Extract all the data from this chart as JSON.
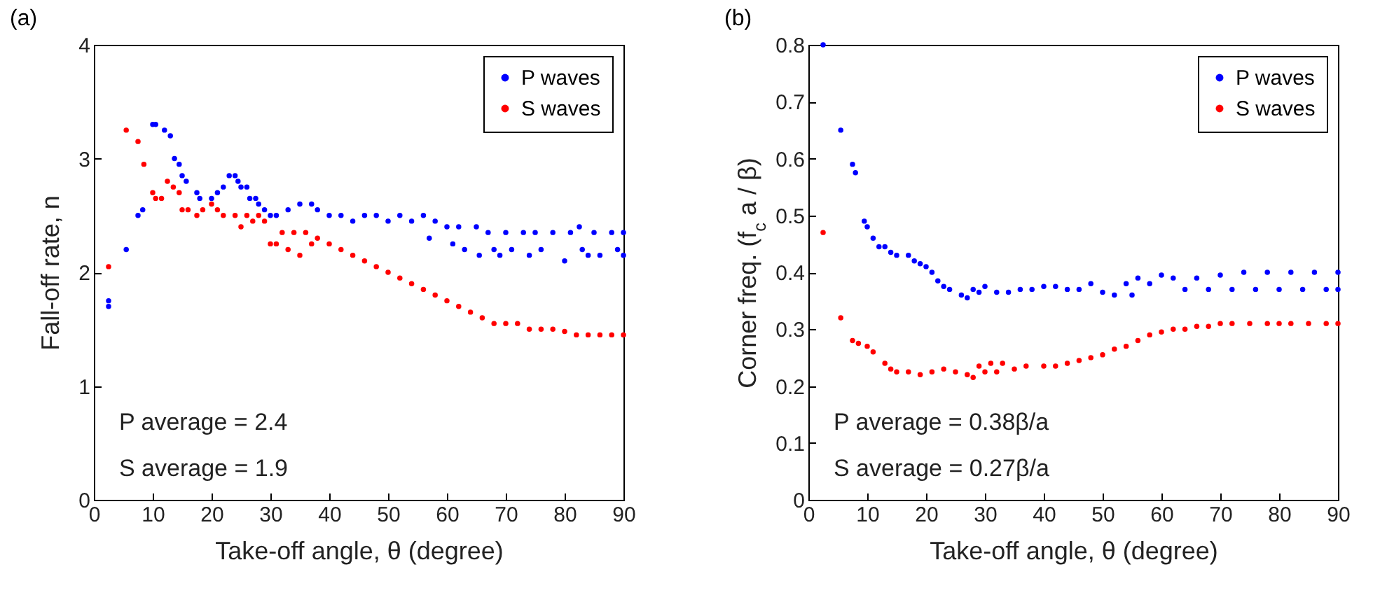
{
  "chart_data": [
    {
      "type": "scatter",
      "title": "(a)",
      "xlabel": "Take-off angle, θ (degree)",
      "ylabel": "Fall-off rate, n",
      "xlim": [
        0,
        90
      ],
      "xticks": [
        0,
        10,
        20,
        30,
        40,
        50,
        60,
        70,
        80,
        90
      ],
      "ylim": [
        0,
        4
      ],
      "yticks": [
        0,
        1,
        2,
        3,
        4
      ],
      "legend": "top right",
      "marker": "circle",
      "annotations": [
        "P average = 2.4",
        "S average = 1.9"
      ],
      "series": [
        {
          "name": "P waves",
          "color": "#0000ff",
          "x": [
            2.5,
            2.5,
            5.5,
            7.5,
            8.3,
            10,
            10.5,
            12,
            13,
            13.7,
            14.5,
            15,
            15.7,
            17.5,
            18,
            20,
            21,
            22,
            23,
            24,
            24.5,
            25,
            26,
            26.5,
            27.5,
            28,
            29,
            30,
            31,
            33,
            35,
            37,
            38,
            40,
            42,
            44,
            46,
            48,
            50,
            52,
            54,
            56,
            57,
            58,
            60,
            61,
            62,
            63,
            65,
            65.5,
            67,
            68,
            69,
            70,
            71,
            73,
            74,
            75,
            76,
            78,
            80,
            81,
            82.5,
            83,
            84,
            85,
            86,
            88,
            89,
            90,
            90
          ],
          "values": [
            1.7,
            1.75,
            2.2,
            2.5,
            2.55,
            3.3,
            3.3,
            3.25,
            3.2,
            3.0,
            2.95,
            2.85,
            2.8,
            2.7,
            2.65,
            2.65,
            2.7,
            2.75,
            2.85,
            2.85,
            2.8,
            2.75,
            2.75,
            2.65,
            2.65,
            2.6,
            2.55,
            2.5,
            2.5,
            2.55,
            2.6,
            2.6,
            2.55,
            2.5,
            2.5,
            2.45,
            2.5,
            2.5,
            2.45,
            2.5,
            2.45,
            2.5,
            2.3,
            2.45,
            2.4,
            2.25,
            2.4,
            2.2,
            2.4,
            2.15,
            2.35,
            2.2,
            2.15,
            2.35,
            2.2,
            2.35,
            2.15,
            2.35,
            2.2,
            2.35,
            2.1,
            2.35,
            2.4,
            2.2,
            2.15,
            2.35,
            2.15,
            2.35,
            2.2,
            2.15,
            2.35
          ]
        },
        {
          "name": "S waves",
          "color": "#ff0000",
          "x": [
            2.5,
            5.5,
            7.5,
            8.5,
            10,
            10.5,
            11.5,
            12.5,
            13.5,
            14.5,
            15,
            16,
            17.5,
            18.5,
            20,
            21,
            22,
            24,
            25,
            26,
            27,
            28,
            29,
            30,
            31,
            32,
            33,
            34,
            35,
            36,
            37,
            38,
            40,
            42,
            44,
            46,
            48,
            50,
            52,
            54,
            56,
            58,
            60,
            62,
            64,
            66,
            68,
            70,
            72,
            74,
            76,
            78,
            80,
            82,
            84,
            86,
            88,
            90
          ],
          "values": [
            2.05,
            3.25,
            3.15,
            2.95,
            2.7,
            2.65,
            2.65,
            2.8,
            2.75,
            2.7,
            2.55,
            2.55,
            2.5,
            2.55,
            2.6,
            2.55,
            2.5,
            2.5,
            2.4,
            2.5,
            2.45,
            2.5,
            2.45,
            2.25,
            2.25,
            2.35,
            2.2,
            2.35,
            2.15,
            2.35,
            2.25,
            2.3,
            2.25,
            2.2,
            2.15,
            2.1,
            2.05,
            2.0,
            1.95,
            1.9,
            1.85,
            1.8,
            1.75,
            1.7,
            1.65,
            1.6,
            1.55,
            1.55,
            1.55,
            1.5,
            1.5,
            1.5,
            1.48,
            1.45,
            1.45,
            1.45,
            1.45,
            1.45
          ]
        }
      ]
    },
    {
      "type": "scatter",
      "title": "(b)",
      "xlabel": "Take-off angle, θ (degree)",
      "ylabel": "Corner freq. (f$_{c}$ a / β)",
      "xlim": [
        0,
        90
      ],
      "xticks": [
        0,
        10,
        20,
        30,
        40,
        50,
        60,
        70,
        80,
        90
      ],
      "ylim": [
        0,
        0.8
      ],
      "yticks": [
        0,
        0.1,
        0.2,
        0.3,
        0.4,
        0.5,
        0.6,
        0.7,
        0.8
      ],
      "legend": "top right",
      "marker": "circle",
      "annotations": [
        "P average = 0.38β/a",
        "S average = 0.27β/a"
      ],
      "series": [
        {
          "name": "P waves",
          "color": "#0000ff",
          "x": [
            2.5,
            5.5,
            7.5,
            8,
            9.5,
            10,
            11,
            12,
            13,
            14,
            15,
            17,
            18,
            19,
            20,
            21,
            22,
            23,
            24,
            26,
            27,
            28,
            29,
            30,
            32,
            34,
            36,
            38,
            40,
            42,
            44,
            46,
            48,
            50,
            52,
            54,
            55,
            56,
            58,
            60,
            62,
            64,
            66,
            68,
            70,
            72,
            74,
            76,
            78,
            80,
            82,
            84,
            86,
            88,
            90,
            90
          ],
          "values": [
            0.8,
            0.65,
            0.59,
            0.575,
            0.49,
            0.48,
            0.46,
            0.445,
            0.445,
            0.435,
            0.43,
            0.43,
            0.42,
            0.415,
            0.41,
            0.4,
            0.385,
            0.375,
            0.37,
            0.36,
            0.355,
            0.37,
            0.365,
            0.375,
            0.365,
            0.365,
            0.37,
            0.37,
            0.375,
            0.375,
            0.37,
            0.37,
            0.38,
            0.365,
            0.36,
            0.38,
            0.36,
            0.39,
            0.38,
            0.395,
            0.39,
            0.37,
            0.39,
            0.37,
            0.395,
            0.37,
            0.4,
            0.37,
            0.4,
            0.37,
            0.4,
            0.37,
            0.4,
            0.37,
            0.4,
            0.37
          ]
        },
        {
          "name": "S waves",
          "color": "#ff0000",
          "x": [
            2.5,
            5.5,
            7.5,
            8.5,
            10,
            11,
            13,
            14,
            15,
            17,
            19,
            21,
            23,
            25,
            27,
            28,
            29,
            30,
            31,
            32,
            33,
            35,
            37,
            40,
            42,
            44,
            46,
            48,
            50,
            52,
            54,
            56,
            58,
            60,
            62,
            64,
            66,
            68,
            70,
            72,
            75,
            78,
            80,
            82,
            85,
            88,
            90
          ],
          "values": [
            0.47,
            0.32,
            0.28,
            0.275,
            0.27,
            0.26,
            0.24,
            0.23,
            0.225,
            0.225,
            0.22,
            0.225,
            0.23,
            0.225,
            0.22,
            0.215,
            0.235,
            0.225,
            0.24,
            0.225,
            0.24,
            0.23,
            0.235,
            0.235,
            0.235,
            0.24,
            0.245,
            0.25,
            0.255,
            0.265,
            0.27,
            0.28,
            0.29,
            0.295,
            0.3,
            0.3,
            0.305,
            0.305,
            0.31,
            0.31,
            0.31,
            0.31,
            0.31,
            0.31,
            0.31,
            0.31,
            0.31
          ]
        }
      ]
    }
  ]
}
